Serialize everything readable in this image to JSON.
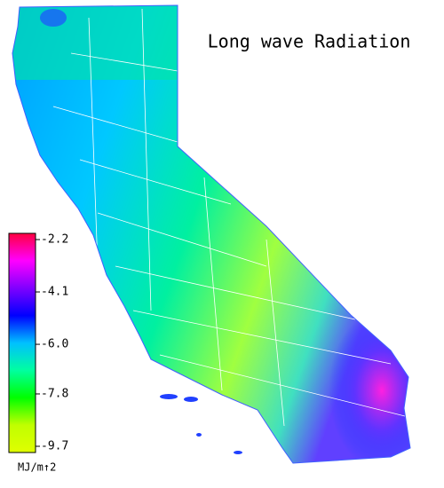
{
  "title": "Long wave Radiation",
  "colorbar": {
    "ticks": [
      -2.2,
      -4.1,
      {
        "value": -6,
        "label": "-6.0"
      },
      -7.8,
      -9.7
    ],
    "colors": [
      "#ff0040",
      "#ff00ff",
      "#8000ff",
      "#0000ff",
      "#00c0ff",
      "#00ffa0",
      "#00ff00",
      "#c0ff00",
      "#e0ff00"
    ],
    "unit": "MJ/m↑2"
  }
}
